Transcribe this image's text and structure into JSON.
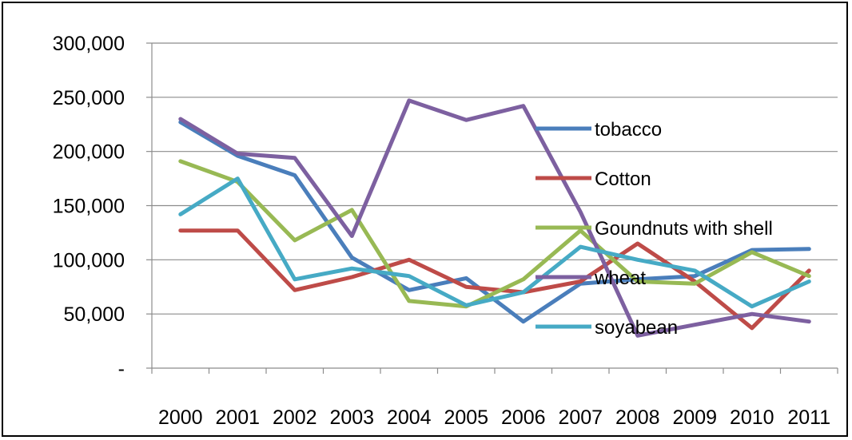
{
  "chart_data": {
    "type": "line",
    "title": "",
    "xlabel": "",
    "ylabel": "",
    "categories": [
      "2000",
      "2001",
      "2002",
      "2003",
      "2004",
      "2005",
      "2006",
      "2007",
      "2008",
      "2009",
      "2010",
      "2011"
    ],
    "ylim": [
      0,
      300000
    ],
    "yticks": [
      {
        "value": 0,
        "label": "-"
      },
      {
        "value": 50000,
        "label": "50,000"
      },
      {
        "value": 100000,
        "label": "100,000"
      },
      {
        "value": 150000,
        "label": "150,000"
      },
      {
        "value": 200000,
        "label": "200,000"
      },
      {
        "value": 250000,
        "label": "250,000"
      },
      {
        "value": 300000,
        "label": "300,000"
      }
    ],
    "grid": true,
    "legend_position": "right",
    "series": [
      {
        "name": "tobacco",
        "color": "#4a7ebb",
        "values": [
          227000,
          196000,
          178000,
          102000,
          72000,
          83000,
          43000,
          78000,
          82000,
          85000,
          109000,
          110000
        ]
      },
      {
        "name": "Cotton",
        "color": "#be4b48",
        "values": [
          127000,
          127000,
          72000,
          84000,
          100000,
          75000,
          70000,
          80000,
          115000,
          80000,
          37000,
          90000
        ]
      },
      {
        "name": "Goundnuts with shell",
        "color": "#98b954",
        "values": [
          191000,
          172000,
          118000,
          146000,
          62000,
          57000,
          82000,
          127000,
          80000,
          78000,
          107000,
          85000
        ]
      },
      {
        "name": "wheat",
        "color": "#7d60a0",
        "values": [
          230000,
          198000,
          194000,
          122000,
          247000,
          229000,
          242000,
          144000,
          30000,
          40000,
          50000,
          43000
        ]
      },
      {
        "name": "soyabean",
        "color": "#46aac5",
        "values": [
          142000,
          175000,
          82000,
          92000,
          85000,
          58000,
          70000,
          112000,
          100000,
          90000,
          57000,
          80000
        ]
      }
    ]
  }
}
